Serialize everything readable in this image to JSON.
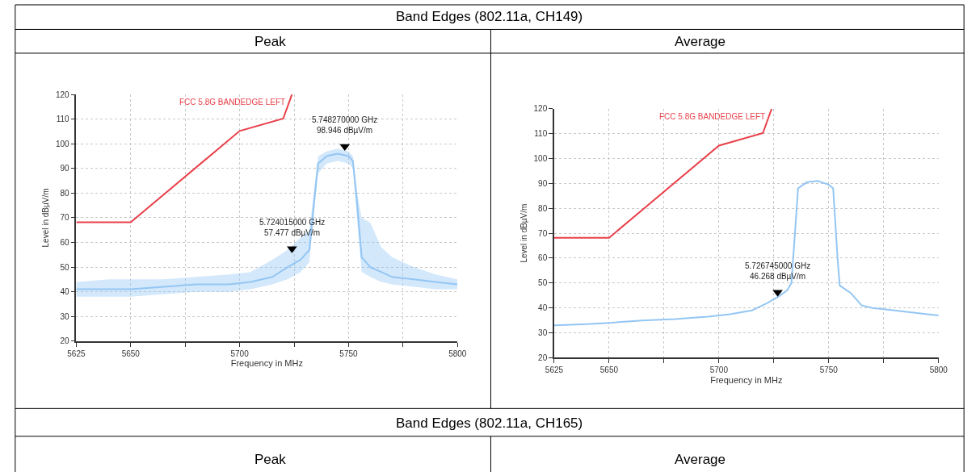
{
  "chart_data": [
    {
      "type": "line",
      "title": "Peak",
      "xlabel": "Frequency in MHz",
      "ylabel": "Level in dBµV/m",
      "xlim": [
        5625,
        5800
      ],
      "ylim": [
        20,
        120
      ],
      "xticks": [
        5625,
        5650,
        {
          "value": 5675,
          "label": null
        },
        5700,
        {
          "value": 5725,
          "label": null
        },
        5750,
        {
          "value": 5775,
          "label": null
        },
        5800
      ],
      "yticks": [
        20,
        30,
        40,
        50,
        60,
        70,
        80,
        90,
        100,
        110,
        120
      ],
      "grid": true,
      "line_style": "solid",
      "marker": "none",
      "series": [
        {
          "name": "FCC 5.8G BANDEDGE LEFT",
          "color": "#e8404a",
          "x": [
            5625,
            5650,
            5700,
            5720,
            5724
          ],
          "values": [
            68.2,
            68.2,
            105.2,
            110.2,
            120
          ]
        },
        {
          "color": "#93c6f4",
          "x": [
            5625,
            5640,
            5650,
            5665,
            5680,
            5695,
            5705,
            5715,
            5722,
            5728,
            5732,
            5734,
            5736,
            5740,
            5745,
            5750,
            5752,
            5754,
            5756,
            5760,
            5765,
            5770,
            5780,
            5790,
            5800
          ],
          "values": [
            41,
            41,
            41,
            42,
            43,
            43,
            44,
            46,
            50,
            53,
            57,
            75,
            92,
            95,
            96,
            95,
            93,
            75,
            54,
            50,
            48,
            46,
            45,
            44,
            43
          ],
          "lower": [
            38,
            38,
            38,
            39,
            40,
            40,
            41,
            43,
            45,
            48,
            52,
            70,
            88,
            92,
            93,
            92,
            90,
            68,
            48,
            46,
            44,
            43,
            42,
            41,
            41
          ],
          "upper": [
            44,
            45,
            45,
            45,
            46,
            47,
            48,
            53,
            57,
            62,
            65,
            80,
            95,
            97,
            98,
            97,
            95,
            80,
            70,
            68,
            58,
            54,
            50,
            47,
            45
          ]
        },
        {
          "type": "scatter",
          "marker": "triangle",
          "color": "#000000",
          "x": [
            5724.015,
            5748.27
          ],
          "values": [
            57.477,
            98.946
          ]
        }
      ],
      "annotations": [
        "Band Edges (802.11a, CH149)",
        "Band Edges (802.11a, CH165)",
        "Peak",
        {
          "text": "5.724015000 GHz\n57.477 dBµV/m",
          "x": 5724.015,
          "y": 57.477
        },
        {
          "text": "5.748270000 GHz\n98.946 dBµV/m",
          "x": 5748.27,
          "y": 98.946
        }
      ]
    },
    {
      "type": "line",
      "title": "Average",
      "xlabel": "Frequency in MHz",
      "ylabel": "Level in dBµV/m",
      "xlim": [
        5625,
        5800
      ],
      "ylim": [
        20,
        120
      ],
      "xticks": [
        5625,
        5650,
        {
          "value": 5675,
          "label": null
        },
        5700,
        {
          "value": 5725,
          "label": null
        },
        5750,
        {
          "value": 5775,
          "label": null
        },
        5800
      ],
      "yticks": [
        20,
        30,
        40,
        50,
        60,
        70,
        80,
        90,
        100,
        110,
        120
      ],
      "grid": true,
      "line_style": "solid",
      "marker": "none",
      "series": [
        {
          "name": "FCC 5.8G BANDEDGE LEFT",
          "color": "#e8404a",
          "x": [
            5625,
            5650,
            5700,
            5720,
            5724
          ],
          "values": [
            68.2,
            68.2,
            105.2,
            110.2,
            120
          ]
        },
        {
          "color": "#93c6f4",
          "x": [
            5625,
            5640,
            5650,
            5665,
            5680,
            5695,
            5705,
            5715,
            5722,
            5727,
            5731,
            5733,
            5735,
            5736,
            5740,
            5745,
            5750,
            5752,
            5754,
            5755,
            5760,
            5765,
            5770,
            5780,
            5790,
            5800
          ],
          "values": [
            33,
            33.5,
            34,
            35,
            35.5,
            36.5,
            37.5,
            39,
            42,
            44.5,
            47,
            50,
            75,
            88,
            90.5,
            91,
            89.5,
            88,
            60,
            49,
            46,
            41,
            40,
            39,
            38,
            37
          ]
        },
        {
          "type": "scatter",
          "marker": "triangle",
          "color": "#000000",
          "x": [
            5726.745
          ],
          "values": [
            46.268
          ]
        }
      ],
      "annotations": [
        "Average",
        {
          "text": "5.726745000 GHz\n46.268 dBµV/m",
          "x": 5726.745,
          "y": 46.268
        }
      ]
    }
  ]
}
